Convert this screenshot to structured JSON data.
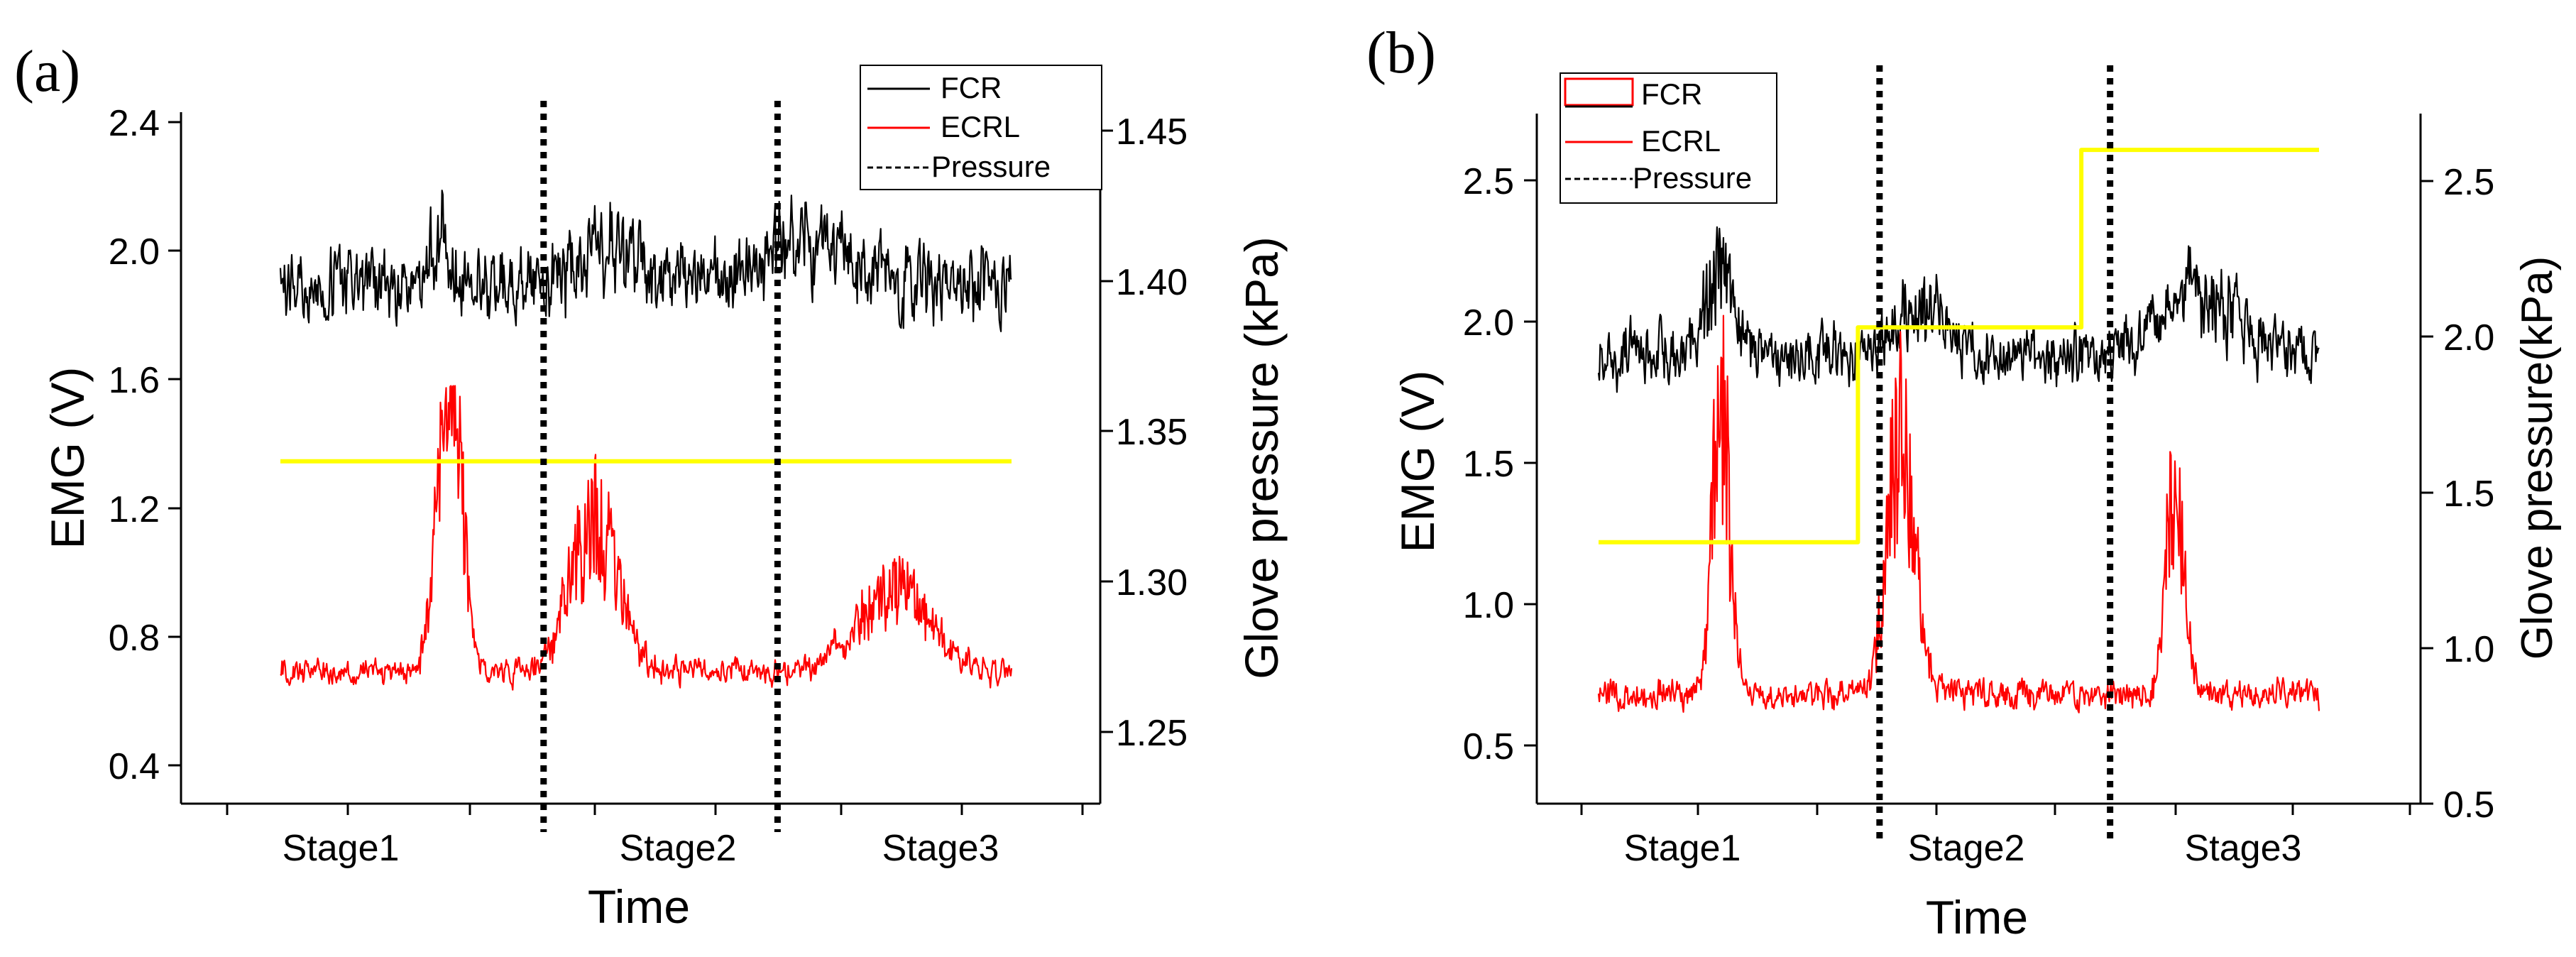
{
  "figure": {
    "panels": [
      {
        "panel_label": "(a)",
        "legend": [
          "FCR",
          "ECRL",
          "Pressure"
        ]
      },
      {
        "panel_label": "(b)",
        "legend": [
          "FCR",
          "ECRL",
          "Pressure"
        ]
      }
    ]
  },
  "colors": {
    "fcr": "#000000",
    "ecrl": "#ff0000",
    "pressure": "#ffff00",
    "stage_divider": "#000000"
  },
  "chart_data": [
    {
      "type": "line",
      "panel": "(a)",
      "xlabel": "Time",
      "ylabel_left": "EMG (V)",
      "ylabel_right": "Glove pressure (kPa)",
      "x_categories": [
        "Stage1",
        "Stage2",
        "Stage3"
      ],
      "x_range": [
        0,
        100
      ],
      "ylim_left": [
        0.3,
        2.5
      ],
      "yticks_left": [
        "0.4",
        "0.8",
        "1.2",
        "1.6",
        "2.0",
        "2.4"
      ],
      "ylim_right": [
        1.22,
        1.47
      ],
      "yticks_right": [
        "1.25",
        "1.30",
        "1.35",
        "1.40",
        "1.45"
      ],
      "stage_dividers_x": [
        36,
        68
      ],
      "series": [
        {
          "name": "FCR",
          "axis": "left",
          "baseline": 1.9,
          "noise": 0.09,
          "bursts": [
            [
              18,
              22,
              0.15
            ],
            [
              50,
              45,
              0.12
            ],
            [
              74,
              72,
              0.13
            ]
          ],
          "clip": [
            1.58,
            2.28
          ]
        },
        {
          "name": "ECRL",
          "axis": "left",
          "baseline": 0.69,
          "noise": 0.03,
          "bursts": [
            [
              19,
              24,
              0.6
            ],
            [
              19,
              22,
              0.45
            ],
            [
              48,
              43,
              0.45
            ],
            [
              70,
              84,
              0.25
            ]
          ],
          "clip": [
            0.45,
            1.58
          ]
        },
        {
          "name": "Pressure",
          "axis": "right",
          "x": [
            0,
            100
          ],
          "y": [
            1.34,
            1.34
          ]
        }
      ]
    },
    {
      "type": "line",
      "panel": "(b)",
      "xlabel": "Time",
      "ylabel_left": "EMG (V)",
      "ylabel_right": "Glove pressure(kPa)",
      "x_categories": [
        "Stage1",
        "Stage2",
        "Stage3"
      ],
      "x_range": [
        0,
        100
      ],
      "ylim_left": [
        0.4,
        2.7
      ],
      "yticks_left": [
        "0.5",
        "1.0",
        "1.5",
        "2.0",
        "2.5"
      ],
      "ylim_right": [
        0.5,
        2.7
      ],
      "yticks_right": [
        "0.5",
        "1.0",
        "1.5",
        "2.0",
        "2.5"
      ],
      "stage_dividers_x": [
        39,
        71
      ],
      "series": [
        {
          "name": "FCR",
          "axis": "left",
          "baseline": 1.88,
          "noise": 0.08,
          "bursts": [
            [
              24,
              17,
              0.3
            ],
            [
              43,
              45,
              0.18
            ],
            [
              77,
              84,
              0.22
            ]
          ],
          "clip": [
            1.6,
            2.55
          ]
        },
        {
          "name": "ECRL",
          "axis": "left",
          "baseline": 0.68,
          "noise": 0.04,
          "bursts": [
            [
              17,
              17,
              1.0
            ],
            [
              27,
              42,
              0.9
            ],
            [
              18,
              80,
              0.7
            ]
          ],
          "clip": [
            0.55,
            2.05
          ]
        },
        {
          "name": "Pressure",
          "axis": "right",
          "x": [
            0,
            36,
            36,
            67,
            67,
            100
          ],
          "y": [
            1.34,
            1.34,
            2.03,
            2.03,
            2.6,
            2.6
          ]
        }
      ]
    }
  ]
}
